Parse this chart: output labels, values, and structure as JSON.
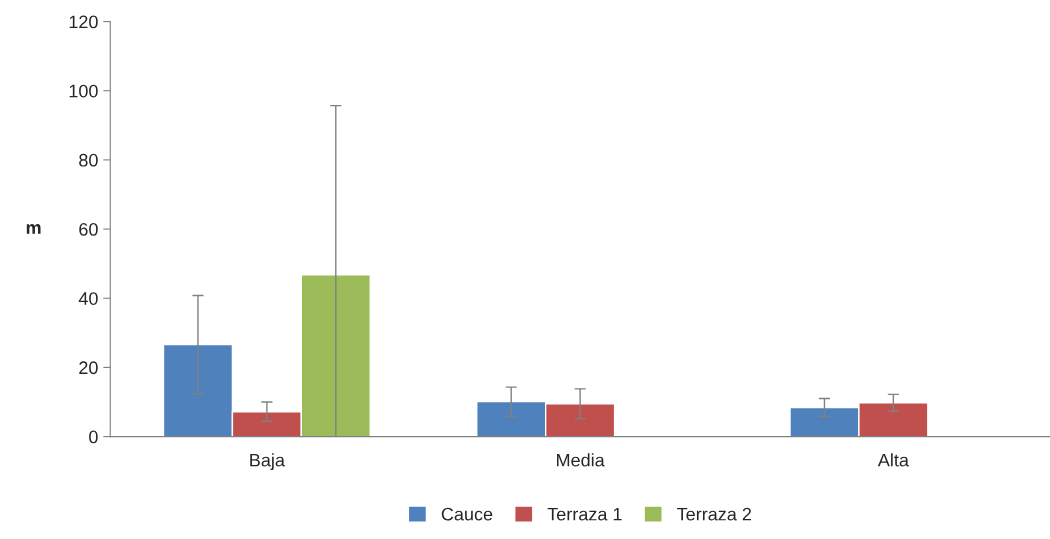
{
  "chart_data": {
    "type": "bar",
    "ylabel": "m",
    "categories": [
      "Baja",
      "Media",
      "Alta"
    ],
    "series": [
      {
        "name": "Cauce",
        "color": "#4f81bd",
        "values": [
          26.6,
          10.1,
          8.4
        ],
        "errors": [
          14.2,
          4.2,
          2.6
        ]
      },
      {
        "name": "Terraza 1",
        "color": "#c0504d",
        "values": [
          7.2,
          9.5,
          9.8
        ],
        "errors": [
          2.8,
          4.3,
          2.4
        ]
      },
      {
        "name": "Terraza 2",
        "color": "#9bbb59",
        "values": [
          46.8,
          null,
          null
        ],
        "errors": [
          [
            0,
            95.7
          ],
          null,
          null
        ]
      }
    ],
    "ylim": [
      0,
      120
    ],
    "yticks": [
      0,
      20,
      40,
      60,
      80,
      100,
      120
    ],
    "grid": false,
    "legend": "bottom"
  }
}
